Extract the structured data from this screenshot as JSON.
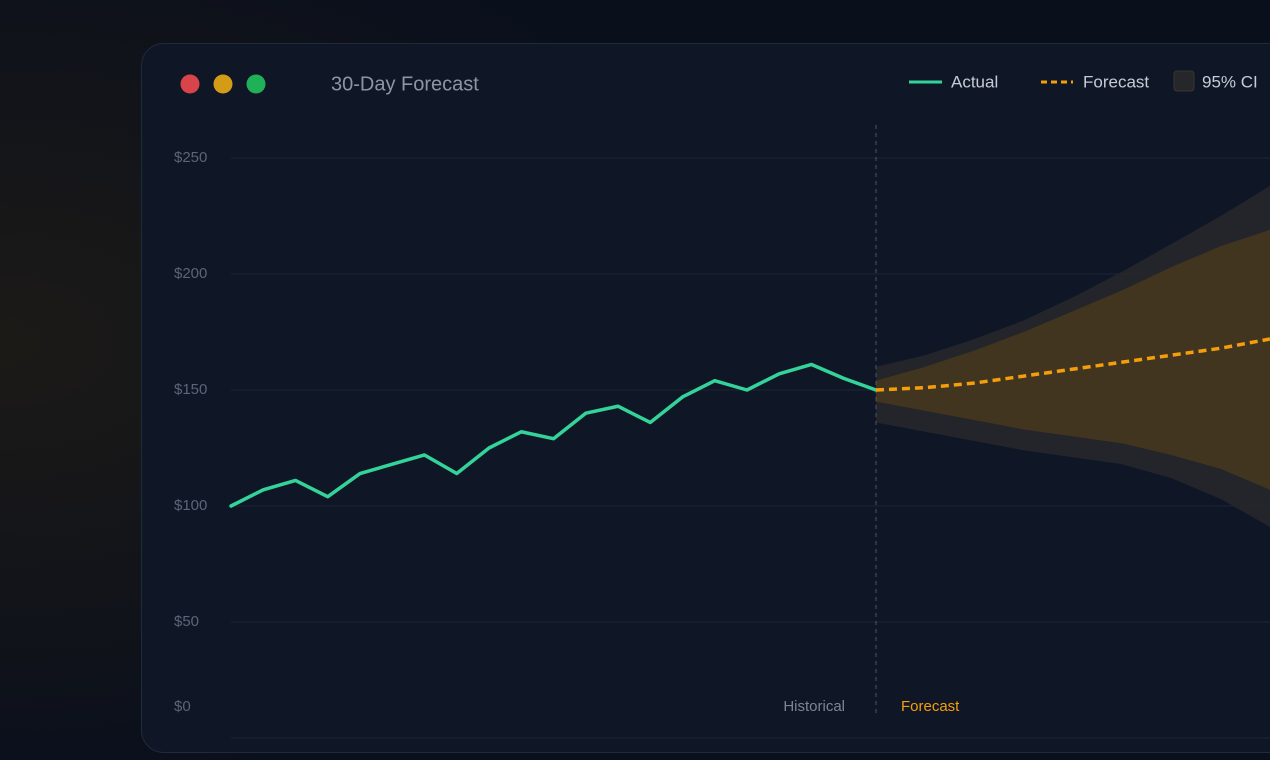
{
  "window": {
    "title": "30-Day Forecast"
  },
  "chart_data": {
    "type": "line",
    "series": [
      {
        "name": "Actual",
        "color": "#34d399",
        "values": [
          100,
          107,
          111,
          104,
          114,
          118,
          122,
          114,
          125,
          132,
          129,
          140,
          143,
          136,
          147,
          154,
          150,
          157,
          161,
          155,
          150
        ]
      },
      {
        "name": "Forecast",
        "color": "#f59e0b",
        "dashed": true,
        "values": [
          150,
          151,
          153,
          156,
          159,
          162,
          165,
          168,
          172
        ]
      }
    ],
    "bands": [
      {
        "name": "95% CI",
        "color": "#26272b",
        "lower": [
          136,
          132,
          128,
          124,
          121,
          118,
          112,
          103,
          91
        ],
        "upper": [
          160,
          165,
          172,
          180,
          190,
          201,
          213,
          225,
          238
        ]
      },
      {
        "color": "#45371f",
        "lower": [
          145,
          141,
          137,
          133,
          130,
          127,
          122,
          116,
          107
        ],
        "upper": [
          154,
          160,
          167,
          175,
          184,
          193,
          203,
          212,
          219
        ]
      }
    ],
    "regions": [
      "Historical",
      "Forecast"
    ],
    "ylim": [
      0,
      250
    ],
    "yticks": [
      {
        "value": 0,
        "label": "$0"
      },
      {
        "value": 50,
        "label": "$50"
      },
      {
        "value": 100,
        "label": "$100"
      },
      {
        "value": 150,
        "label": "$150"
      },
      {
        "value": 200,
        "label": "$200"
      },
      {
        "value": 250,
        "label": "$250"
      }
    ],
    "grid": true
  }
}
